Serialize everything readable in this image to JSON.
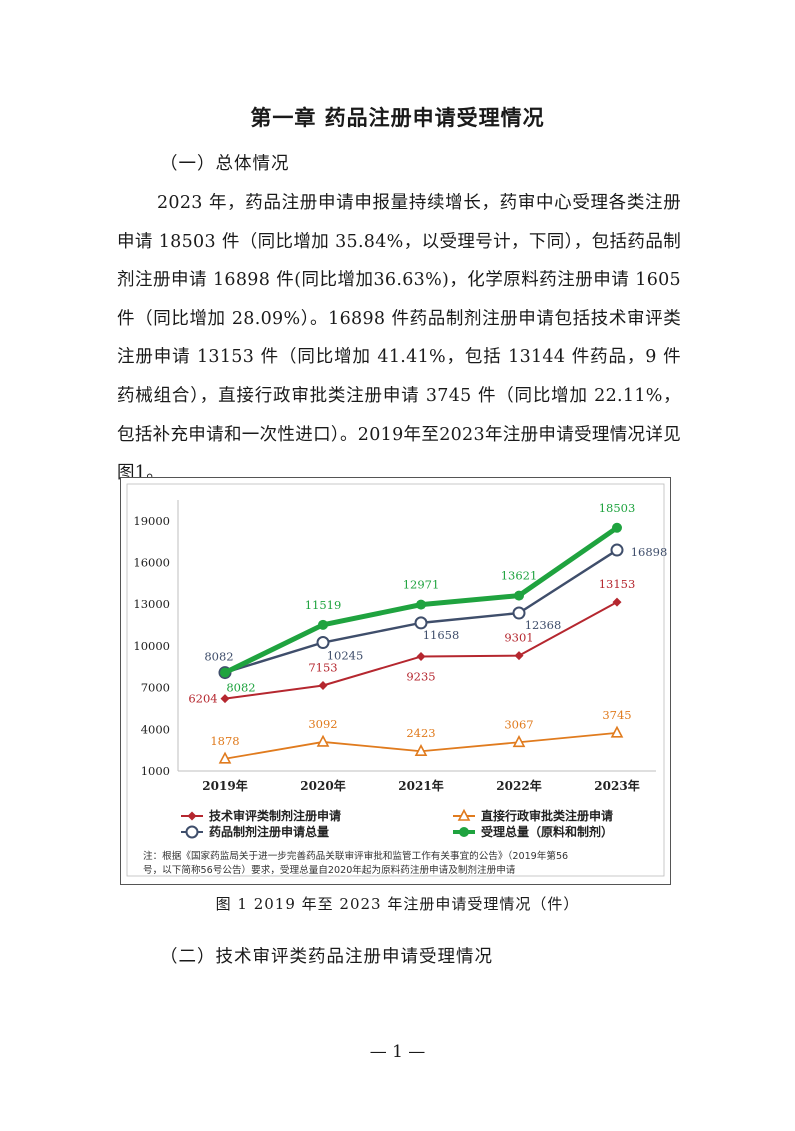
{
  "document": {
    "chapter_title": "第一章  药品注册申请受理情况",
    "section1_heading": "（一）总体情况",
    "paragraph": "2023 年，药品注册申请申报量持续增长，药审中心受理各类注册申请 18503 件（同比增加 35.84%，以受理号计，下同），包括药品制剂注册申请 16898 件(同比增加36.63%)，化学原料药注册申请 1605 件（同比增加 28.09%）。16898 件药品制剂注册申请包括技术审评类注册申请 13153 件（同比增加 41.41%，包括 13144 件药品，9 件药械组合），直接行政审批类注册申请 3745 件（同比增加 22.11%，包括补充申请和一次性进口）。2019年至2023年注册申请受理情况详见图1。",
    "figure_caption": "图 1   2019 年至 2023 年注册申请受理情况（件）",
    "section2_heading": "（二）技术审评类药品注册申请受理情况",
    "page_number": "— 1 —"
  },
  "chart_data": {
    "type": "line",
    "x": [
      "2019年",
      "2020年",
      "2021年",
      "2022年",
      "2023年"
    ],
    "yticks": [
      "1000",
      "4000",
      "7000",
      "10000",
      "13000",
      "16000",
      "19000"
    ],
    "ylim": [
      1000,
      20500
    ],
    "grid": false,
    "legend_position": "bottom",
    "series": [
      {
        "name": "技术审评类制剂注册申请",
        "values": [
          6204,
          7153,
          9235,
          9301,
          13153
        ],
        "labels": [
          "6204",
          "7153",
          "9235",
          "9301",
          "13153"
        ],
        "color": "#b5272f",
        "marker": "diamond"
      },
      {
        "name": "直接行政审批类注册申请",
        "values": [
          1878,
          3092,
          2423,
          3067,
          3745
        ],
        "labels": [
          "1878",
          "3092",
          "2423",
          "3067",
          "3745"
        ],
        "color": "#e07b1e",
        "marker": "triangle"
      },
      {
        "name": "药品制剂注册申请总量",
        "values": [
          8082,
          10245,
          11658,
          12368,
          16898
        ],
        "labels": [
          "8082",
          "10245",
          "11658",
          "12368",
          "16898"
        ],
        "color": "#3f4e6b",
        "marker": "circle"
      },
      {
        "name": "受理总量（原料和制剂）",
        "values": [
          8082,
          11519,
          12971,
          13621,
          18503
        ],
        "labels": [
          "8082",
          "11519",
          "12971",
          "13621",
          "18503"
        ],
        "color": "#1fa33f",
        "marker": "circle"
      }
    ],
    "note_line1": "注：根据《国家药监局关于进一步完善药品关联审评审批和监管工作有关事宜的公告》（2019年第56",
    "note_line2": "号，以下简称56号公告）要求，受理总量自2020年起为原料药注册申请及制剂注册申请"
  }
}
